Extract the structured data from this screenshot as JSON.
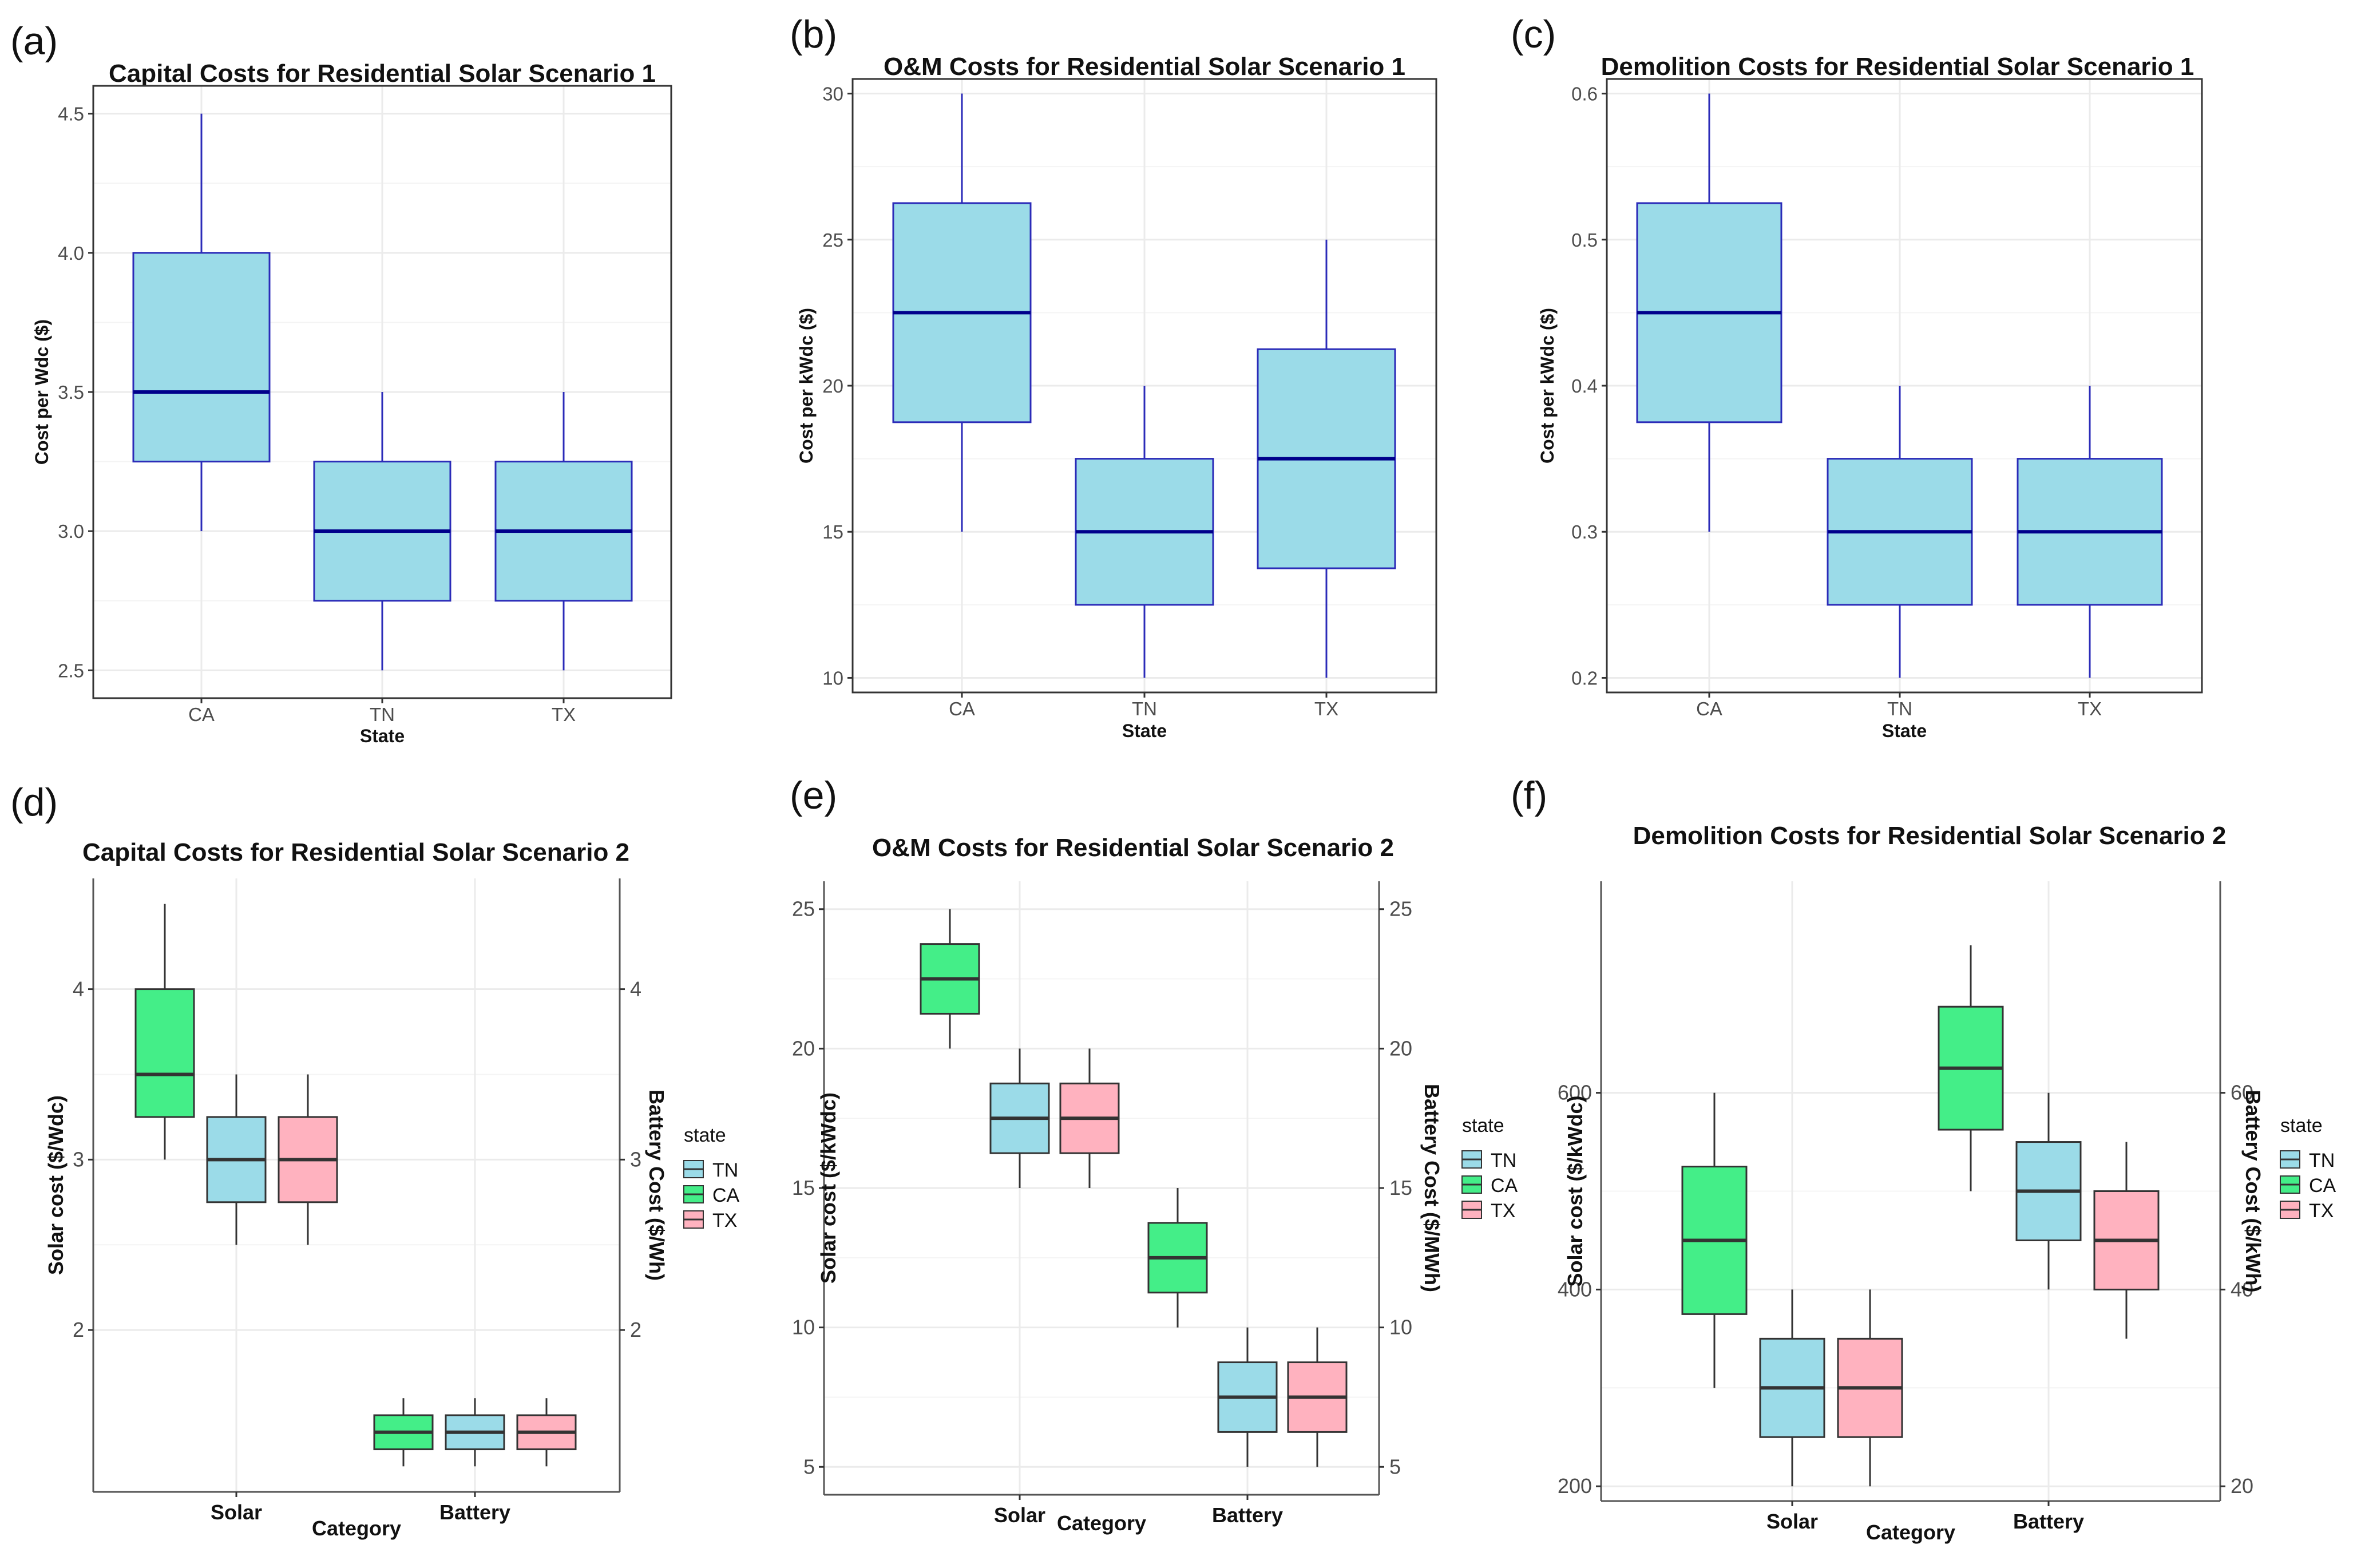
{
  "colors": {
    "box_fill": "#9bdbe8",
    "box_stroke": "#2b2bb8",
    "median": "#00008b",
    "TN": "#9bdbe8",
    "CA": "#44ee88",
    "TX": "#ffb2bf",
    "grid": "#ebebeb",
    "dark": "#333333"
  },
  "chart_data": [
    {
      "panel": "(a)",
      "type": "box",
      "title": "Capital Costs for Residential Solar Scenario 1",
      "xlabel": "State",
      "ylabel": "Cost per Wdc ($)",
      "categories": [
        "CA",
        "TN",
        "TX"
      ],
      "ylim": [
        2.4,
        4.6
      ],
      "yticks": [
        "2.5",
        "3.0",
        "3.5",
        "4.0",
        "4.5"
      ],
      "boxes": [
        {
          "category": "CA",
          "min": 3.0,
          "q1": 3.25,
          "median": 3.5,
          "q3": 4.0,
          "max": 4.5
        },
        {
          "category": "TN",
          "min": 2.5,
          "q1": 2.75,
          "median": 3.0,
          "q3": 3.25,
          "max": 3.5
        },
        {
          "category": "TX",
          "min": 2.5,
          "q1": 2.75,
          "median": 3.0,
          "q3": 3.25,
          "max": 3.5
        }
      ]
    },
    {
      "panel": "(b)",
      "type": "box",
      "title": "O&M Costs for Residential Solar Scenario 1",
      "xlabel": "State",
      "ylabel": "Cost per kWdc ($)",
      "categories": [
        "CA",
        "TN",
        "TX"
      ],
      "ylim": [
        9.5,
        30.5
      ],
      "yticks": [
        "10",
        "15",
        "20",
        "25",
        "30"
      ],
      "boxes": [
        {
          "category": "CA",
          "min": 15,
          "q1": 18.75,
          "median": 22.5,
          "q3": 26.25,
          "max": 30
        },
        {
          "category": "TN",
          "min": 10,
          "q1": 12.5,
          "median": 15,
          "q3": 17.5,
          "max": 20
        },
        {
          "category": "TX",
          "min": 10,
          "q1": 13.75,
          "median": 17.5,
          "q3": 21.25,
          "max": 25
        }
      ]
    },
    {
      "panel": "(c)",
      "type": "box",
      "title": "Demolition Costs for Residential Solar Scenario 1",
      "xlabel": "State",
      "ylabel": "Cost per kWdc ($)",
      "categories": [
        "CA",
        "TN",
        "TX"
      ],
      "ylim": [
        0.19,
        0.61
      ],
      "yticks": [
        "0.2",
        "0.3",
        "0.4",
        "0.5",
        "0.6"
      ],
      "boxes": [
        {
          "category": "CA",
          "min": 0.3,
          "q1": 0.375,
          "median": 0.45,
          "q3": 0.525,
          "max": 0.6
        },
        {
          "category": "TN",
          "min": 0.2,
          "q1": 0.25,
          "median": 0.3,
          "q3": 0.35,
          "max": 0.4
        },
        {
          "category": "TX",
          "min": 0.2,
          "q1": 0.25,
          "median": 0.3,
          "q3": 0.35,
          "max": 0.4
        }
      ]
    },
    {
      "panel": "(d)",
      "type": "box",
      "title": "Capital Costs for Residential Solar Scenario 2",
      "xlabel": "Category",
      "ylabel": "Solar cost ($/Wdc)",
      "ylabel_right": "Battery Cost ($/Wh)",
      "categories": [
        "Solar",
        "Battery"
      ],
      "ylim": [
        1.05,
        4.65
      ],
      "yticks": [
        "2",
        "3",
        "4"
      ],
      "legend": {
        "title": "state",
        "entries": [
          "TN",
          "CA",
          "TX"
        ]
      },
      "series": [
        {
          "name": "CA",
          "boxes": [
            {
              "category": "Solar",
              "min": 3.0,
              "q1": 3.25,
              "median": 3.5,
              "q3": 4.0,
              "max": 4.5
            },
            {
              "category": "Battery",
              "min": 1.2,
              "q1": 1.3,
              "median": 1.4,
              "q3": 1.5,
              "max": 1.6
            }
          ]
        },
        {
          "name": "TN",
          "boxes": [
            {
              "category": "Solar",
              "min": 2.5,
              "q1": 2.75,
              "median": 3.0,
              "q3": 3.25,
              "max": 3.5
            },
            {
              "category": "Battery",
              "min": 1.2,
              "q1": 1.3,
              "median": 1.4,
              "q3": 1.5,
              "max": 1.6
            }
          ]
        },
        {
          "name": "TX",
          "boxes": [
            {
              "category": "Solar",
              "min": 2.5,
              "q1": 2.75,
              "median": 3.0,
              "q3": 3.25,
              "max": 3.5
            },
            {
              "category": "Battery",
              "min": 1.2,
              "q1": 1.3,
              "median": 1.4,
              "q3": 1.5,
              "max": 1.6
            }
          ]
        }
      ]
    },
    {
      "panel": "(e)",
      "type": "box",
      "title": "O&M Costs for Residential Solar Scenario 2",
      "xlabel": "Category",
      "ylabel": "Solar cost ($/kWdc)",
      "ylabel_right": "Battery Cost ($/MWh)",
      "categories": [
        "Solar",
        "Battery"
      ],
      "ylim": [
        4.0,
        26.0
      ],
      "yticks": [
        "5",
        "10",
        "15",
        "20",
        "25"
      ],
      "legend": {
        "title": "state",
        "entries": [
          "TN",
          "CA",
          "TX"
        ]
      },
      "series": [
        {
          "name": "CA",
          "boxes": [
            {
              "category": "Solar",
              "min": 20,
              "q1": 21.25,
              "median": 22.5,
              "q3": 23.75,
              "max": 25
            },
            {
              "category": "Battery",
              "min": 10,
              "q1": 11.25,
              "median": 12.5,
              "q3": 13.75,
              "max": 15
            }
          ]
        },
        {
          "name": "TN",
          "boxes": [
            {
              "category": "Solar",
              "min": 15,
              "q1": 16.25,
              "median": 17.5,
              "q3": 18.75,
              "max": 20
            },
            {
              "category": "Battery",
              "min": 5,
              "q1": 6.25,
              "median": 7.5,
              "q3": 8.75,
              "max": 10
            }
          ]
        },
        {
          "name": "TX",
          "boxes": [
            {
              "category": "Solar",
              "min": 15,
              "q1": 16.25,
              "median": 17.5,
              "q3": 18.75,
              "max": 20
            },
            {
              "category": "Battery",
              "min": 5,
              "q1": 6.25,
              "median": 7.5,
              "q3": 8.75,
              "max": 10
            }
          ]
        }
      ]
    },
    {
      "panel": "(f)",
      "type": "box",
      "title": "Demolition Costs for Residential Solar Scenario 2",
      "xlabel": "Category",
      "ylabel": "Solar cost ($/kWdc)",
      "ylabel_right": "Battery Cost ($/kWh)",
      "categories": [
        "Solar",
        "Battery"
      ],
      "ylim": [
        185,
        815
      ],
      "yticks": [
        "200",
        "400",
        "600"
      ],
      "yticks_right": [
        "20",
        "40",
        "60"
      ],
      "legend": {
        "title": "state",
        "entries": [
          "TN",
          "CA",
          "TX"
        ]
      },
      "series": [
        {
          "name": "CA",
          "boxes": [
            {
              "category": "Solar",
              "min": 300,
              "q1": 375,
              "median": 450,
              "q3": 525,
              "max": 600
            },
            {
              "category": "Battery",
              "min": 500,
              "q1": 562.5,
              "median": 625,
              "q3": 687.5,
              "max": 750
            }
          ]
        },
        {
          "name": "TN",
          "boxes": [
            {
              "category": "Solar",
              "min": 200,
              "q1": 250,
              "median": 300,
              "q3": 350,
              "max": 400
            },
            {
              "category": "Battery",
              "min": 400,
              "q1": 450,
              "median": 500,
              "q3": 550,
              "max": 600
            }
          ]
        },
        {
          "name": "TX",
          "boxes": [
            {
              "category": "Solar",
              "min": 200,
              "q1": 250,
              "median": 300,
              "q3": 350,
              "max": 400
            },
            {
              "category": "Battery",
              "min": 350,
              "q1": 400,
              "median": 450,
              "q3": 500,
              "max": 550
            }
          ]
        }
      ]
    }
  ]
}
